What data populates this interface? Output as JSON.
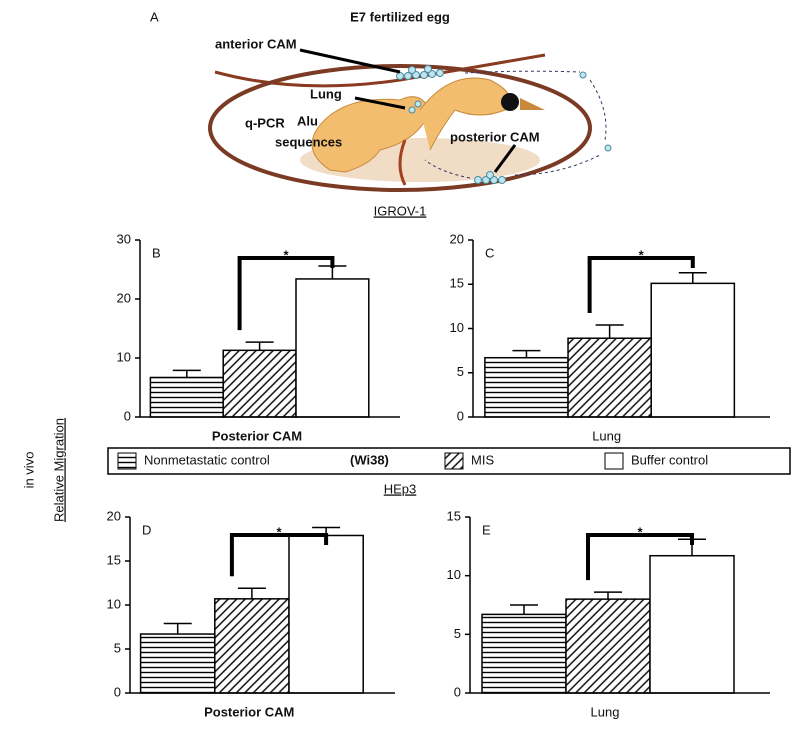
{
  "panel_a": {
    "label": "A",
    "title": "E7 fertilized egg",
    "anterior": "anterior CAM",
    "lung": "Lung",
    "qpcr": "q-PCR",
    "alu": "Alu",
    "sequences": "sequences",
    "posterior": "posterior CAM"
  },
  "y_axis_label": {
    "line1": "in vivo",
    "line2": "Relative Migration"
  },
  "group_labels": [
    "IGROV-1",
    "HEp3"
  ],
  "legend": {
    "entries": [
      "Nonmetastatic control",
      "MIS",
      "Buffer control"
    ],
    "note": "(Wi38)",
    "patterns": [
      "horizontal",
      "diagonal",
      "none"
    ]
  },
  "chart_data": [
    {
      "type": "bar",
      "panel": "B",
      "xlabel": "Posterior  CAM",
      "values": [
        6.7,
        11.3,
        23.4
      ],
      "errors": [
        1.2,
        1.4,
        2.2
      ],
      "ylim": [
        0,
        30
      ],
      "yticks": [
        0,
        10,
        20,
        30
      ],
      "annotation": "*"
    },
    {
      "type": "bar",
      "panel": "C",
      "xlabel": "Lung",
      "values": [
        6.7,
        8.9,
        15.1
      ],
      "errors": [
        0.8,
        1.5,
        1.2
      ],
      "ylim": [
        0,
        20
      ],
      "yticks": [
        0,
        5,
        10,
        15,
        20
      ],
      "annotation": "*"
    },
    {
      "type": "bar",
      "panel": "D",
      "xlabel": "Posterior  CAM",
      "values": [
        6.7,
        10.7,
        17.9
      ],
      "errors": [
        1.2,
        1.2,
        0.9
      ],
      "ylim": [
        0,
        20
      ],
      "yticks": [
        0,
        5,
        10,
        15,
        20
      ],
      "annotation": "*"
    },
    {
      "type": "bar",
      "panel": "E",
      "xlabel": "Lung",
      "values": [
        6.7,
        8.0,
        11.7
      ],
      "errors": [
        0.8,
        0.6,
        1.4
      ],
      "ylim": [
        0,
        15
      ],
      "yticks": [
        0,
        5,
        10,
        15
      ],
      "annotation": "*"
    }
  ]
}
